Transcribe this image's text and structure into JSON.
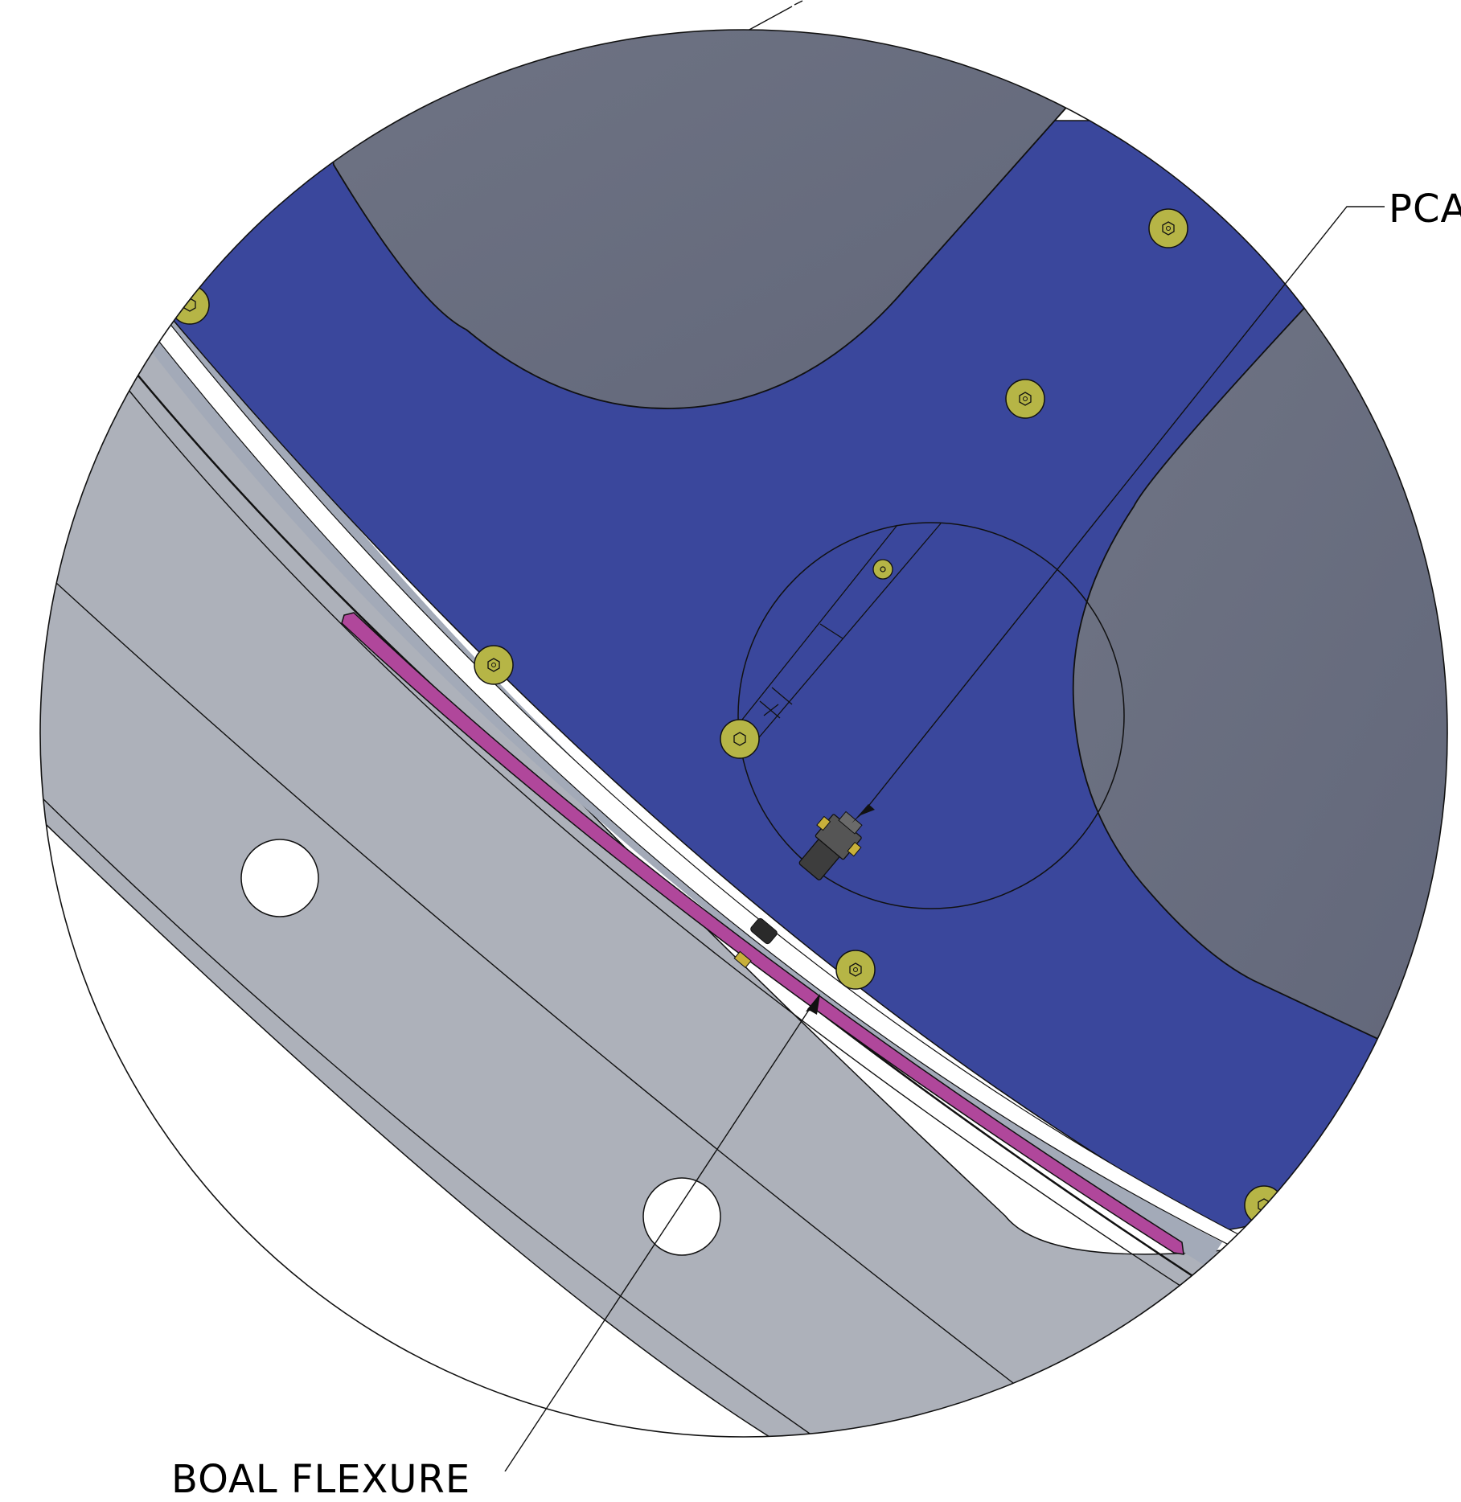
{
  "callouts": {
    "pca": "PCA",
    "boal_flexure": "BOAL FLEXURE"
  },
  "colors": {
    "plate_blue": "#3a479c",
    "bore_gray": "#6a6f80",
    "ring_gray": "#adb1ba",
    "ring_light_gray": "#a3aab8",
    "flexure_magenta": "#b0479b",
    "bolt_yellow": "#b6b546",
    "outline": "#111111",
    "background": "#ffffff"
  },
  "icons": [
    "hex-socket-bolt-icon",
    "threaded-connector-icon"
  ]
}
